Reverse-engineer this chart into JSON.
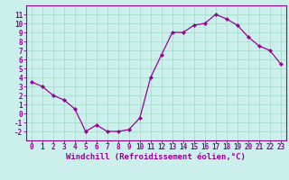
{
  "x": [
    0,
    1,
    2,
    3,
    4,
    5,
    6,
    7,
    8,
    9,
    10,
    11,
    12,
    13,
    14,
    15,
    16,
    17,
    18,
    19,
    20,
    21,
    22,
    23
  ],
  "y": [
    3.5,
    3.0,
    2.0,
    1.5,
    0.5,
    -2.0,
    -1.3,
    -2.0,
    -2.0,
    -1.8,
    -0.5,
    4.0,
    6.5,
    9.0,
    9.0,
    9.8,
    10.0,
    11.0,
    10.5,
    9.8,
    8.5,
    7.5,
    7.0,
    5.5
  ],
  "line_color": "#990099",
  "marker": "D",
  "marker_size": 2.2,
  "background_color": "#cbefeb",
  "grid_color": "#aaddcc",
  "xlabel": "Windchill (Refroidissement éolien,°C)",
  "ylabel": "",
  "xlim": [
    -0.5,
    23.5
  ],
  "ylim": [
    -3,
    12
  ],
  "yticks": [
    -2,
    -1,
    0,
    1,
    2,
    3,
    4,
    5,
    6,
    7,
    8,
    9,
    10,
    11
  ],
  "xticks": [
    0,
    1,
    2,
    3,
    4,
    5,
    6,
    7,
    8,
    9,
    10,
    11,
    12,
    13,
    14,
    15,
    16,
    17,
    18,
    19,
    20,
    21,
    22,
    23
  ],
  "tick_color": "#990099",
  "label_color": "#990099",
  "spine_color": "#990099",
  "font_size": 5.5,
  "xlabel_font_size": 6.5
}
